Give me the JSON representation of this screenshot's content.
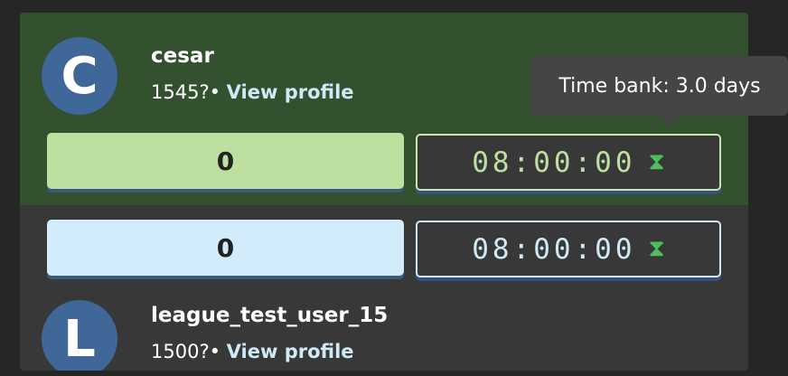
{
  "players": [
    {
      "initial": "C",
      "name": "cesar",
      "rating": "1545?",
      "separator": "•",
      "view_profile": "View profile",
      "score": "0",
      "clock": "08:00:00",
      "clock_icon": "hourglass-icon",
      "score_color": "#bde0a1",
      "clock_color": "#bde0a1",
      "active": true
    },
    {
      "initial": "L",
      "name": "league_test_user_15",
      "rating": "1500?",
      "separator": "•",
      "view_profile": "View profile",
      "score": "0",
      "clock": "08:00:00",
      "clock_icon": "hourglass-icon",
      "score_color": "#d2ecfb",
      "clock_color": "#cfe9f7",
      "active": false
    }
  ],
  "tooltip": {
    "text": "Time bank: 3.0 days"
  }
}
